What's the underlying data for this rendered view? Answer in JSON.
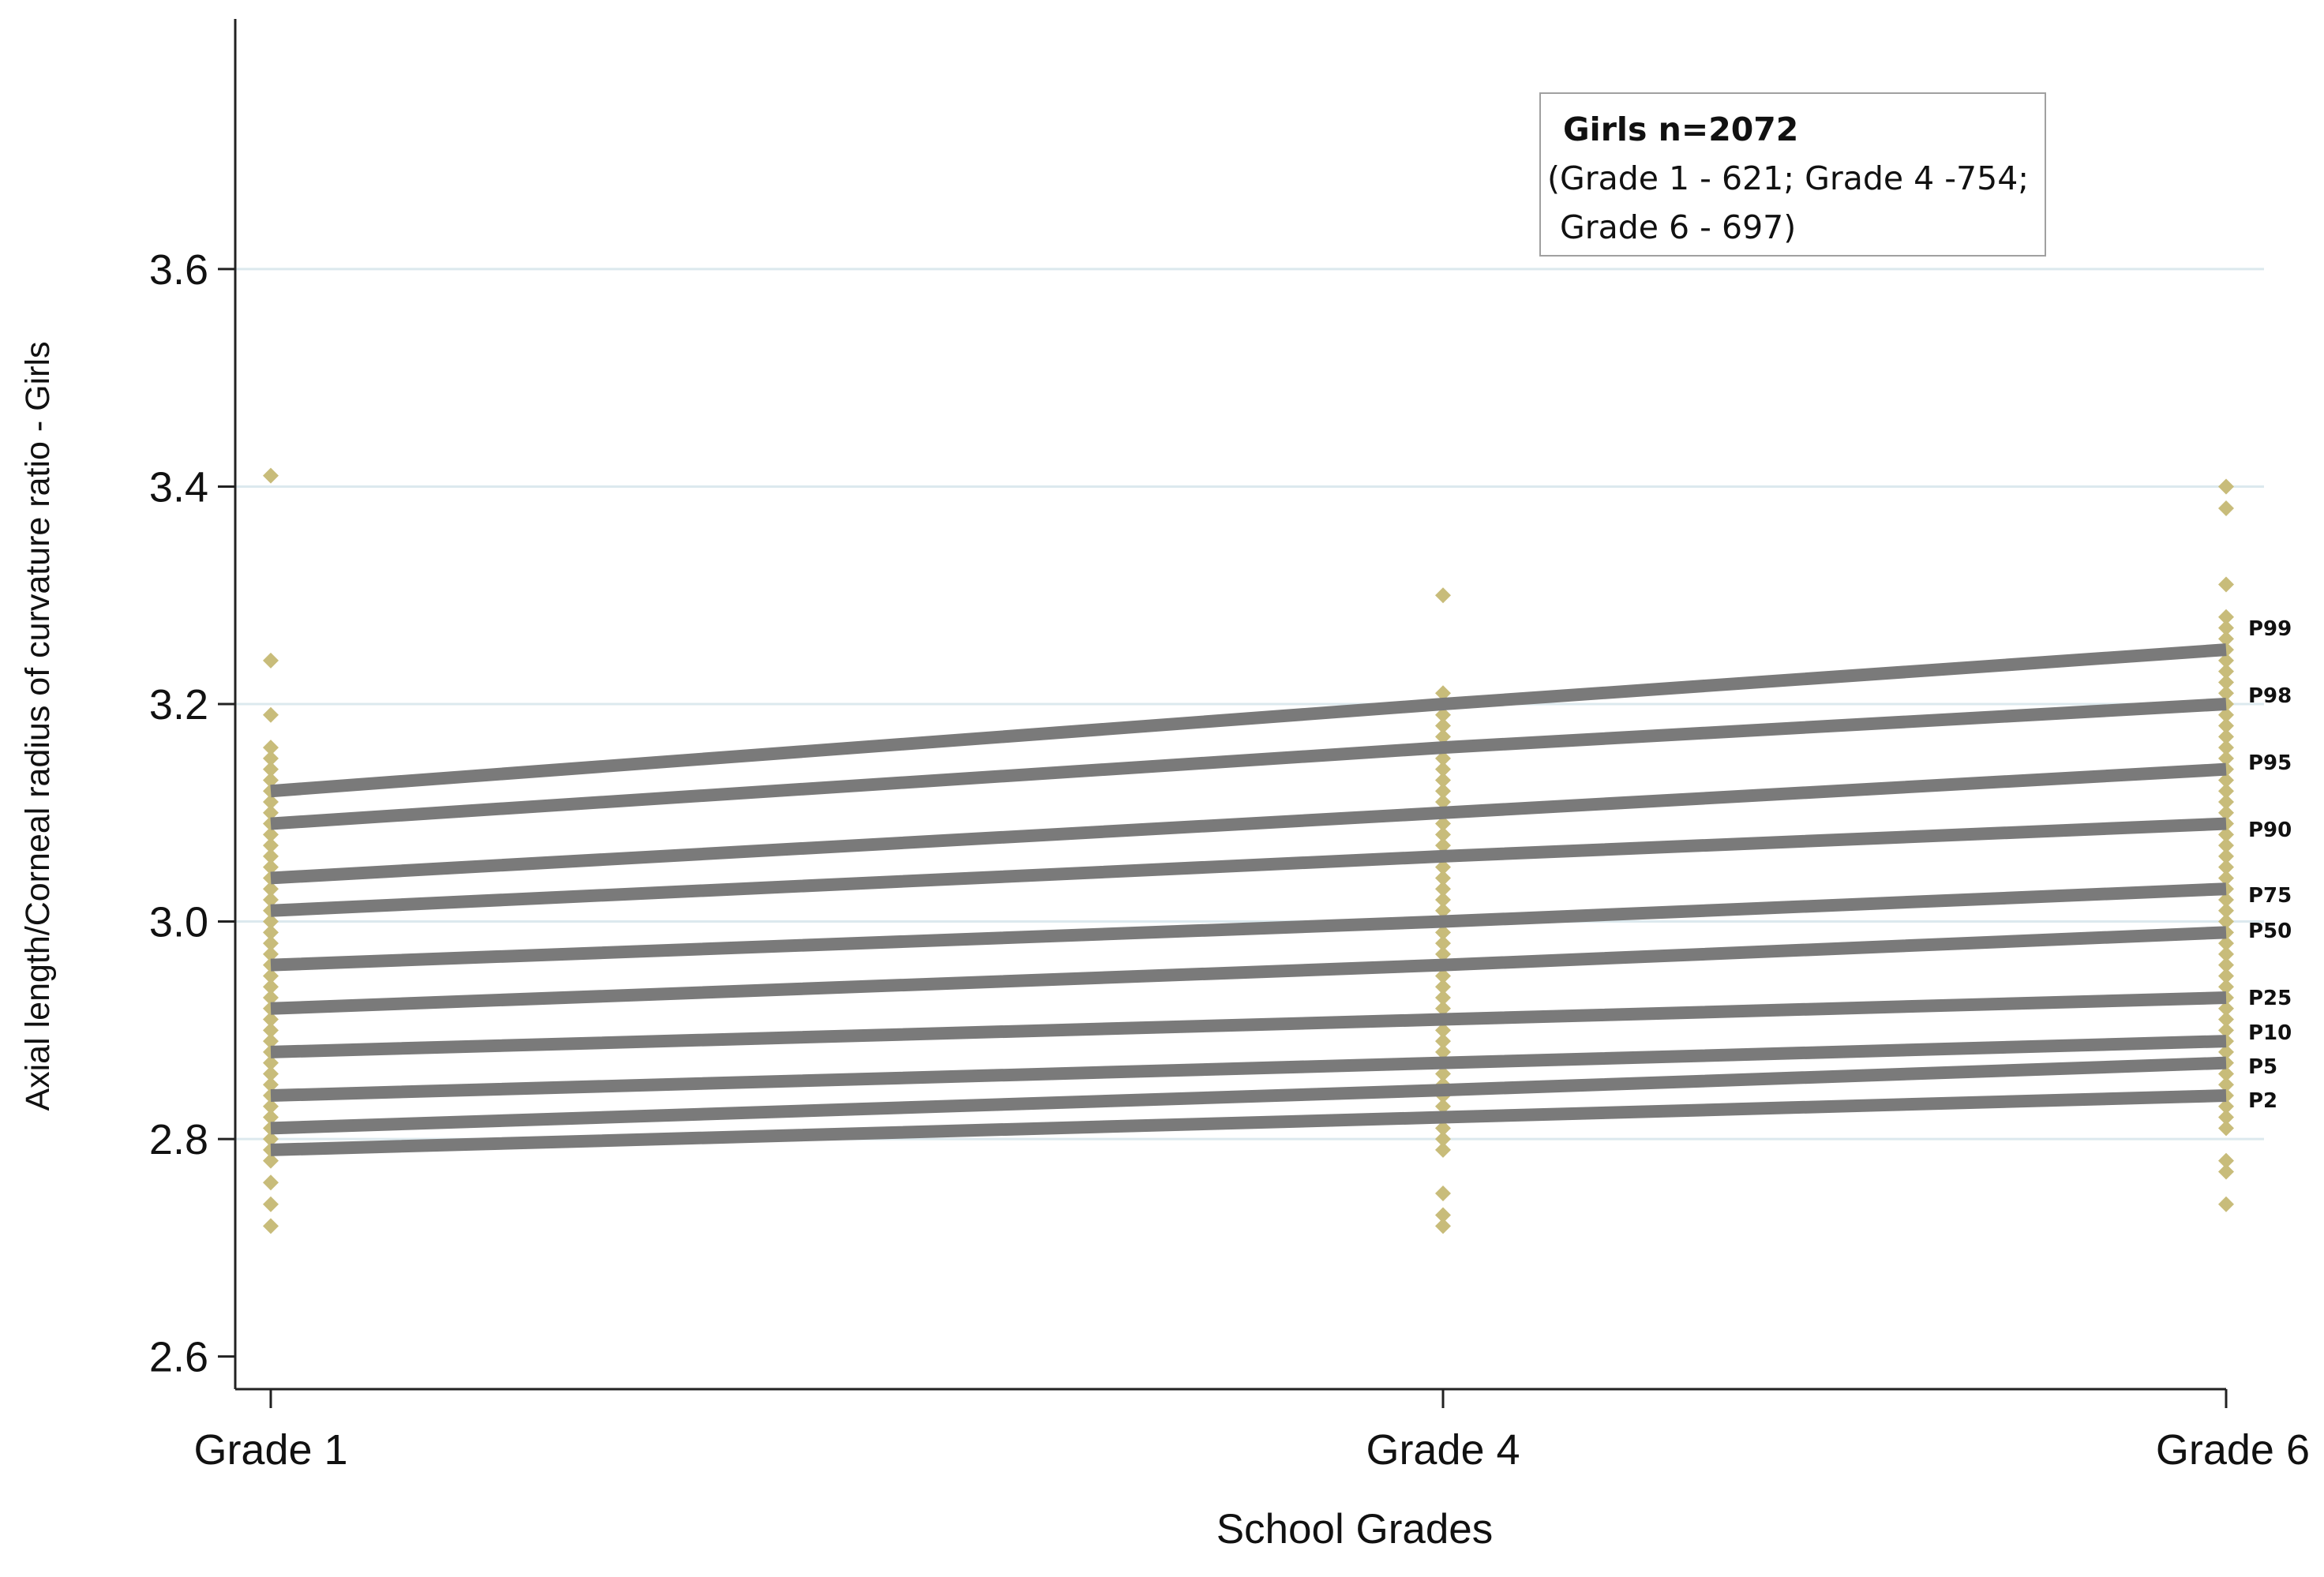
{
  "chart_data": {
    "type": "line",
    "xlabel": "School Grades",
    "ylabel": "Axial length/Corneal  radius of curvature ratio - Girls",
    "categories": [
      "Grade 1",
      "Grade 4",
      "Grade 6"
    ],
    "ylim": [
      2.57,
      3.83
    ],
    "yticks": [
      2.6,
      2.8,
      3.0,
      3.2,
      3.4,
      3.6
    ],
    "ytick_labels": [
      "2.6",
      "2.8",
      "3.0",
      "3.2",
      "3.4",
      "3.6"
    ],
    "grid": true,
    "annotation": {
      "title": "Girls n=2072",
      "line2": "(Grade 1 - 621; Grade 4 -754;",
      "line3": "Grade 6 - 697)"
    },
    "series": [
      {
        "name": "P99",
        "values": [
          3.12,
          3.2,
          3.25
        ]
      },
      {
        "name": "P98",
        "values": [
          3.09,
          3.16,
          3.2
        ]
      },
      {
        "name": "P95",
        "values": [
          3.04,
          3.1,
          3.14
        ]
      },
      {
        "name": "P90",
        "values": [
          3.01,
          3.06,
          3.09
        ]
      },
      {
        "name": "P75",
        "values": [
          2.96,
          3.0,
          3.03
        ]
      },
      {
        "name": "P50",
        "values": [
          2.92,
          2.96,
          2.99
        ]
      },
      {
        "name": "P25",
        "values": [
          2.88,
          2.91,
          2.93
        ]
      },
      {
        "name": "P10",
        "values": [
          2.84,
          2.87,
          2.89
        ]
      },
      {
        "name": "P5",
        "values": [
          2.81,
          2.845,
          2.87
        ]
      },
      {
        "name": "P2",
        "values": [
          2.79,
          2.82,
          2.84
        ]
      }
    ],
    "scatter": {
      "Grade 1": [
        3.41,
        3.24,
        3.19,
        3.16,
        3.15,
        3.14,
        3.13,
        3.12,
        3.11,
        3.1,
        3.09,
        3.08,
        3.07,
        3.06,
        3.05,
        3.04,
        3.03,
        3.02,
        3.01,
        3.0,
        2.99,
        2.98,
        2.97,
        2.96,
        2.95,
        2.94,
        2.93,
        2.92,
        2.91,
        2.9,
        2.89,
        2.88,
        2.87,
        2.86,
        2.85,
        2.84,
        2.83,
        2.82,
        2.81,
        2.8,
        2.79,
        2.78,
        2.76,
        2.74,
        2.72
      ],
      "Grade 4": [
        3.3,
        3.21,
        3.2,
        3.19,
        3.18,
        3.17,
        3.16,
        3.15,
        3.14,
        3.13,
        3.12,
        3.11,
        3.1,
        3.09,
        3.08,
        3.07,
        3.06,
        3.05,
        3.04,
        3.03,
        3.02,
        3.01,
        3.0,
        2.99,
        2.98,
        2.97,
        2.96,
        2.95,
        2.94,
        2.93,
        2.92,
        2.91,
        2.9,
        2.89,
        2.88,
        2.87,
        2.86,
        2.85,
        2.84,
        2.83,
        2.82,
        2.81,
        2.8,
        2.79,
        2.75,
        2.73,
        2.72
      ],
      "Grade 6": [
        3.4,
        3.38,
        3.31,
        3.28,
        3.27,
        3.26,
        3.25,
        3.24,
        3.23,
        3.22,
        3.21,
        3.2,
        3.19,
        3.18,
        3.17,
        3.16,
        3.15,
        3.14,
        3.13,
        3.12,
        3.11,
        3.1,
        3.09,
        3.08,
        3.07,
        3.06,
        3.05,
        3.04,
        3.03,
        3.02,
        3.01,
        3.0,
        2.99,
        2.98,
        2.97,
        2.96,
        2.95,
        2.94,
        2.93,
        2.92,
        2.91,
        2.9,
        2.89,
        2.88,
        2.87,
        2.86,
        2.85,
        2.84,
        2.83,
        2.82,
        2.81,
        2.78,
        2.77,
        2.74
      ]
    },
    "colors": {
      "lines": "#7a7a7a",
      "points": "#c8bc7a",
      "grid": "#dce9ee",
      "axis": "#222222"
    }
  }
}
